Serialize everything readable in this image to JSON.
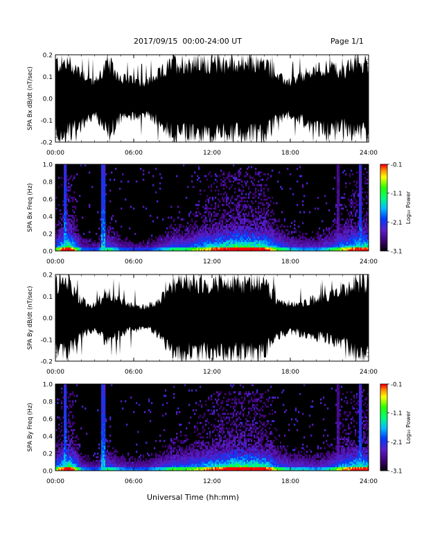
{
  "header": {
    "date_range": "2017/09/15  00:00-24:00 UT",
    "page": "Page 1/1"
  },
  "colors": {
    "waveform_fill": "#000000",
    "background": "#ffffff",
    "spectrogram_background": "#000000",
    "colorbar": [
      "#000000",
      "#4b0082",
      "#0000ff",
      "#00bfff",
      "#00ff7f",
      "#00ff00",
      "#ffff00",
      "#ff8c00",
      "#ff0000"
    ]
  },
  "chart_data": [
    {
      "type": "area",
      "ylabel": "SPA Bx dB/dt (nT/sec)",
      "xlim": [
        0,
        24
      ],
      "ylim": [
        -0.2,
        0.2
      ],
      "yticks": [
        "0.2",
        "0.1",
        "0.0",
        "-0.1",
        "-0.2"
      ],
      "xticks": [
        "00:00",
        "06:00",
        "12:00",
        "18:00",
        "24:00"
      ],
      "x_hours": [
        0,
        1,
        2,
        3,
        4,
        5,
        6,
        7,
        8,
        9,
        10,
        11,
        12,
        13,
        14,
        15,
        16,
        17,
        18,
        19,
        20,
        21,
        22,
        23,
        24
      ],
      "amplitude": [
        0.2,
        0.2,
        0.15,
        0.09,
        0.2,
        0.12,
        0.1,
        0.09,
        0.14,
        0.2,
        0.2,
        0.2,
        0.2,
        0.2,
        0.2,
        0.2,
        0.2,
        0.12,
        0.09,
        0.13,
        0.16,
        0.18,
        0.15,
        0.2,
        0.2
      ]
    },
    {
      "type": "heatmap",
      "ylabel": "SPA Bx Freq (Hz)",
      "xlim": [
        0,
        24
      ],
      "ylim": [
        0,
        1
      ],
      "yticks": [
        "1.0",
        "0.8",
        "0.6",
        "0.4",
        "0.2",
        "0.0"
      ],
      "xticks": [
        "00:00",
        "06:00",
        "12:00",
        "18:00",
        "24:00"
      ],
      "colorbar_label": "Log₁₀ Power",
      "colorbar_ticks": [
        "-0.1",
        "-1.1",
        "-2.1",
        "-3.1"
      ],
      "colorbar_range": [
        -3.1,
        -0.1
      ],
      "x_hours": [
        0,
        1,
        2,
        3,
        4,
        5,
        6,
        7,
        8,
        9,
        10,
        11,
        12,
        13,
        14,
        15,
        16,
        17,
        18,
        19,
        20,
        21,
        22,
        23,
        24
      ],
      "activity": [
        0.5,
        0.9,
        0.25,
        0.2,
        0.45,
        0.25,
        0.2,
        0.2,
        0.3,
        0.45,
        0.45,
        0.6,
        0.7,
        0.8,
        0.9,
        0.85,
        0.8,
        0.5,
        0.35,
        0.3,
        0.3,
        0.4,
        0.6,
        0.75,
        0.8
      ],
      "spikes": [
        {
          "x": 0.7,
          "v": 1.0
        },
        {
          "x": 3.6,
          "v": 1.0
        },
        {
          "x": 21.6,
          "v": 0.5
        },
        {
          "x": 23.3,
          "v": 0.9
        }
      ]
    },
    {
      "type": "area",
      "ylabel": "SPA By dB/dt (nT/sec)",
      "xlim": [
        0,
        24
      ],
      "ylim": [
        -0.2,
        0.2
      ],
      "yticks": [
        "0.2",
        "0.1",
        "0.0",
        "-0.1",
        "-0.2"
      ],
      "xticks": [
        "00:00",
        "06:00",
        "12:00",
        "18:00",
        "24:00"
      ],
      "x_hours": [
        0,
        1,
        2,
        3,
        4,
        5,
        6,
        7,
        8,
        9,
        10,
        11,
        12,
        13,
        14,
        15,
        16,
        17,
        18,
        19,
        20,
        21,
        22,
        23,
        24
      ],
      "amplitude": [
        0.2,
        0.2,
        0.1,
        0.07,
        0.15,
        0.09,
        0.07,
        0.06,
        0.1,
        0.2,
        0.2,
        0.2,
        0.2,
        0.2,
        0.2,
        0.2,
        0.2,
        0.1,
        0.08,
        0.09,
        0.11,
        0.12,
        0.15,
        0.2,
        0.2
      ]
    },
    {
      "type": "heatmap",
      "ylabel": "SPA By Freq (Hz)",
      "xlim": [
        0,
        24
      ],
      "ylim": [
        0,
        1
      ],
      "yticks": [
        "1.0",
        "0.8",
        "0.6",
        "0.4",
        "0.2",
        "0.0"
      ],
      "xticks": [
        "00:00",
        "06:00",
        "12:00",
        "18:00",
        "24:00"
      ],
      "xlabel": "Universal Time (hh:mm)",
      "colorbar_label": "Log₁₀ Power",
      "colorbar_ticks": [
        "-0.1",
        "-1.1",
        "-2.1",
        "-3.1"
      ],
      "colorbar_range": [
        -3.1,
        -0.1
      ],
      "x_hours": [
        0,
        1,
        2,
        3,
        4,
        5,
        6,
        7,
        8,
        9,
        10,
        11,
        12,
        13,
        14,
        15,
        16,
        17,
        18,
        19,
        20,
        21,
        22,
        23,
        24
      ],
      "activity": [
        0.55,
        0.9,
        0.3,
        0.2,
        0.45,
        0.3,
        0.25,
        0.25,
        0.35,
        0.5,
        0.5,
        0.6,
        0.7,
        0.8,
        0.9,
        0.85,
        0.8,
        0.5,
        0.35,
        0.35,
        0.3,
        0.4,
        0.65,
        0.75,
        0.8
      ],
      "spikes": [
        {
          "x": 0.7,
          "v": 1.0
        },
        {
          "x": 3.6,
          "v": 1.0
        },
        {
          "x": 21.6,
          "v": 0.5
        },
        {
          "x": 23.3,
          "v": 0.9
        }
      ]
    }
  ]
}
